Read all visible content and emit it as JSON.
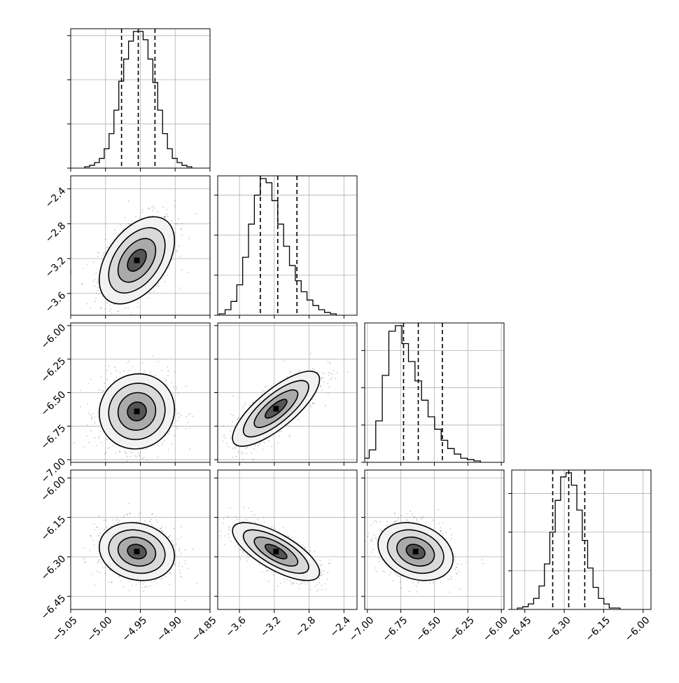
{
  "chart_data": {
    "type": "corner",
    "grid": true,
    "variables": [
      {
        "ticks": [
          -5.05,
          -5.0,
          -4.95,
          -4.9,
          -4.85
        ],
        "tick_labels": [
          "−5.05",
          "−5.00",
          "−4.95",
          "−4.90",
          "−4.85"
        ],
        "range": [
          -5.05,
          -4.85
        ],
        "quantiles": [
          -4.977,
          -4.953,
          -4.929
        ]
      },
      {
        "ticks": [
          -3.6,
          -3.2,
          -2.8,
          -2.4
        ],
        "tick_labels": [
          "−3.6",
          "−3.2",
          "−2.8",
          "−2.4"
        ],
        "range": [
          -3.85,
          -2.25
        ],
        "quantiles": [
          -3.36,
          -3.16,
          -2.94
        ]
      },
      {
        "ticks": [
          -7.0,
          -6.75,
          -6.5,
          -6.25,
          -6.0
        ],
        "tick_labels": [
          "−7.00",
          "−6.75",
          "−6.50",
          "−6.25",
          "−6.00"
        ],
        "range": [
          -7.02,
          -5.98
        ],
        "quantiles": [
          -6.73,
          -6.62,
          -6.44
        ]
      },
      {
        "ticks": [
          -6.45,
          -6.3,
          -6.15,
          -6.0
        ],
        "tick_labels": [
          "−6.45",
          "−6.30",
          "−6.15",
          "−6.00"
        ],
        "range": [
          -6.5,
          -5.97
        ],
        "quantiles": [
          -6.344,
          -6.283,
          -6.222
        ]
      }
    ],
    "histograms": [
      {
        "counts": [
          1,
          2,
          4,
          7,
          14,
          25,
          42,
          63,
          79,
          92,
          99,
          99,
          93,
          79,
          62,
          42,
          25,
          14,
          7,
          4,
          2,
          1
        ]
      },
      {
        "counts": [
          1,
          4,
          10,
          22,
          42,
          66,
          87,
          99,
          96,
          83,
          66,
          50,
          36,
          25,
          17,
          11,
          7,
          4,
          2,
          1
        ]
      },
      {
        "counts": [
          1,
          3,
          9,
          30,
          63,
          95,
          99,
          86,
          73,
          59,
          45,
          33,
          24,
          16,
          10,
          6,
          3,
          2,
          1
        ]
      },
      {
        "counts": [
          1,
          2,
          4,
          8,
          17,
          33,
          56,
          79,
          96,
          99,
          90,
          72,
          50,
          30,
          16,
          8,
          4,
          1,
          1
        ]
      }
    ],
    "hist_max_ticks": [
      {
        "ticks": [
          0,
          32,
          64,
          96
        ]
      },
      {
        "ticks": [
          0,
          29,
          58,
          87
        ]
      },
      {
        "ticks": [
          0,
          27,
          54,
          81
        ]
      },
      {
        "ticks": [
          0,
          28,
          56,
          84
        ]
      }
    ],
    "pairs": [
      {
        "row": 1,
        "col": 0,
        "center": [
          -4.955,
          -3.22
        ],
        "sd": [
          0.027,
          0.25
        ],
        "rho": 0.45,
        "levels": [
          0.15,
          0.45,
          0.75,
          1.0
        ]
      },
      {
        "row": 2,
        "col": 0,
        "center": [
          -4.955,
          -6.64
        ],
        "sd": [
          0.027,
          0.14
        ],
        "rho": 0.05,
        "levels": [
          0.15,
          0.45,
          0.75,
          1.0
        ]
      },
      {
        "row": 2,
        "col": 1,
        "center": [
          -3.18,
          -6.62
        ],
        "sd": [
          0.25,
          0.14
        ],
        "rho": 0.78,
        "levels": [
          0.15,
          0.45,
          0.75,
          1.0
        ]
      },
      {
        "row": 3,
        "col": 0,
        "center": [
          -4.955,
          -6.28
        ],
        "sd": [
          0.027,
          0.055
        ],
        "rho": -0.15,
        "levels": [
          0.15,
          0.45,
          0.75,
          1.0
        ]
      },
      {
        "row": 3,
        "col": 1,
        "center": [
          -3.18,
          -6.28
        ],
        "sd": [
          0.25,
          0.055
        ],
        "rho": -0.72,
        "levels": [
          0.15,
          0.45,
          0.75,
          1.0
        ]
      },
      {
        "row": 3,
        "col": 2,
        "center": [
          -6.64,
          -6.28
        ],
        "sd": [
          0.14,
          0.055
        ],
        "rho": -0.25,
        "levels": [
          0.15,
          0.45,
          0.75,
          1.0
        ]
      }
    ]
  }
}
